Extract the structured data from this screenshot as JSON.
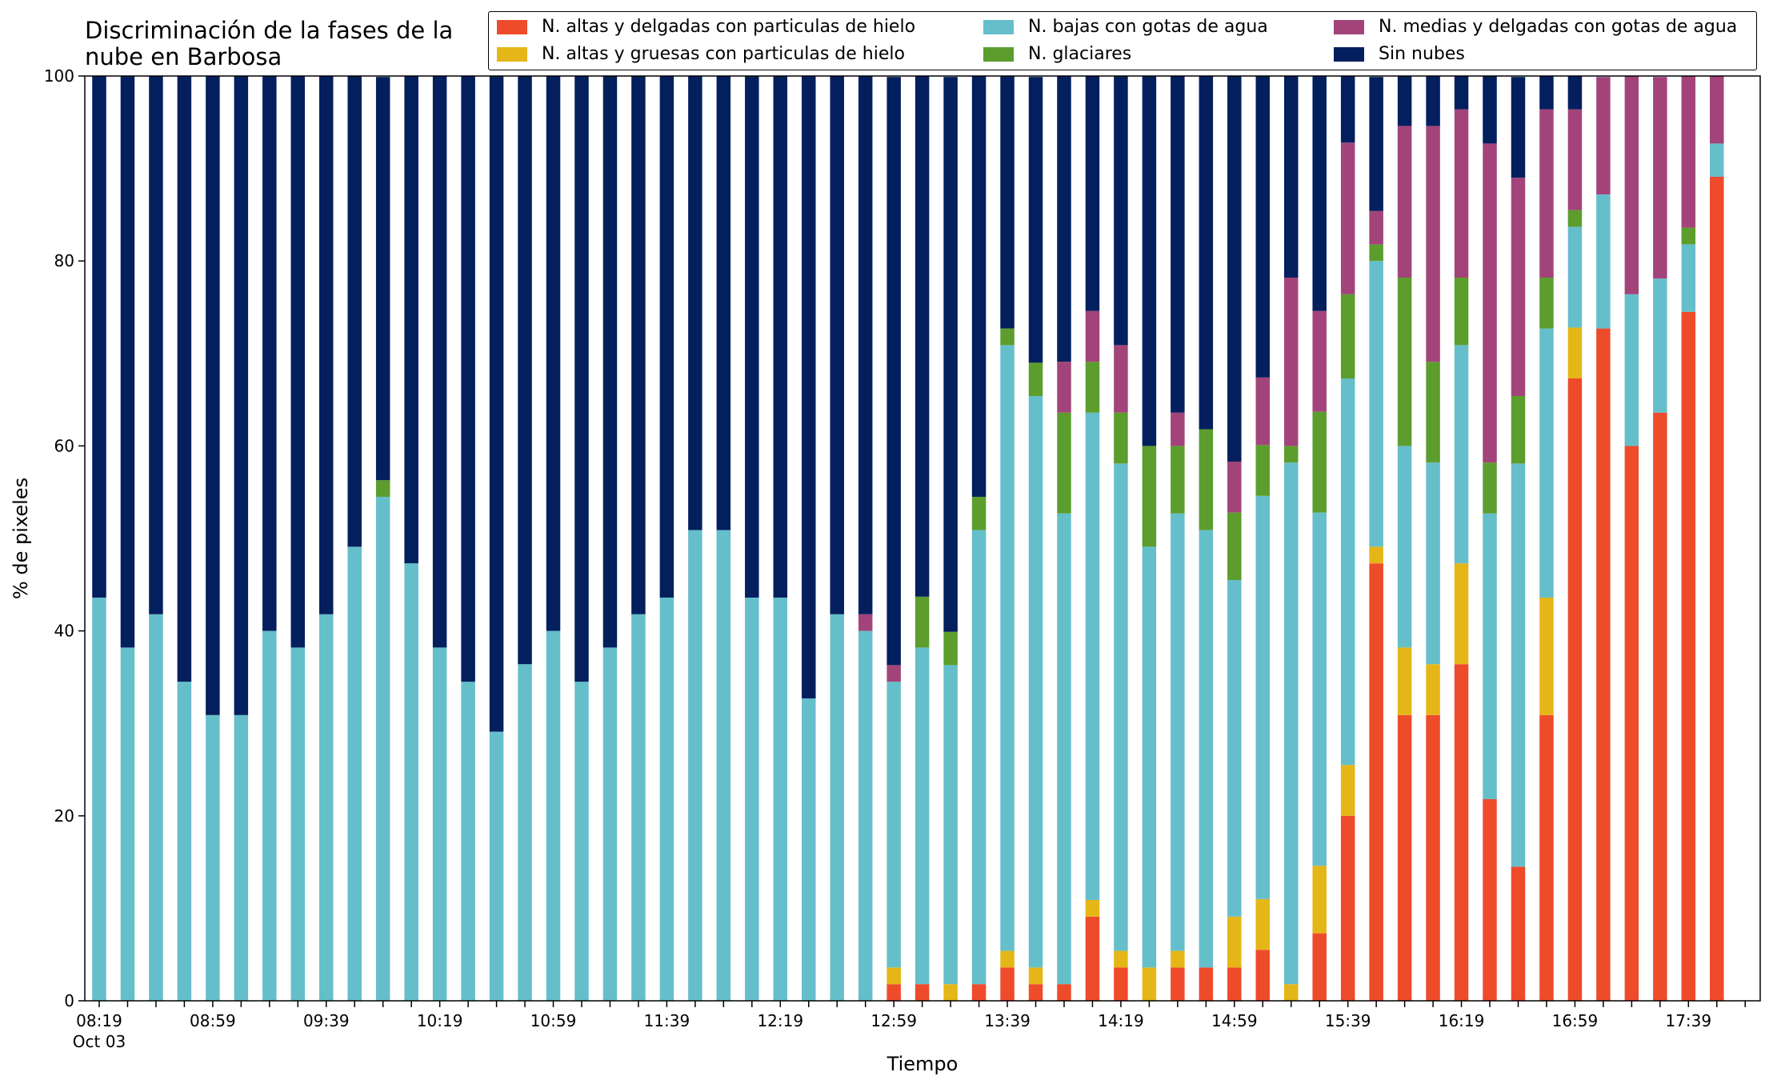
{
  "chart_data": {
    "type": "bar",
    "stacked": true,
    "title": "Discriminación de la fases de la nube en Barbosa",
    "title_lines": [
      "Discriminación de la fases de la",
      "nube en Barbosa"
    ],
    "xlabel": "Tiempo",
    "ylabel": "% de pixeles",
    "ylim": [
      0,
      100
    ],
    "yticks": [
      "0",
      "20",
      "40",
      "60",
      "80",
      "100"
    ],
    "x_tick_labels": [
      {
        "index": 0,
        "label": "08:19"
      },
      {
        "index": 4,
        "label": "08:59"
      },
      {
        "index": 8,
        "label": "09:39"
      },
      {
        "index": 12,
        "label": "10:19"
      },
      {
        "index": 16,
        "label": "10:59"
      },
      {
        "index": 20,
        "label": "11:39"
      },
      {
        "index": 24,
        "label": "12:19"
      },
      {
        "index": 28,
        "label": "12:59"
      },
      {
        "index": 32,
        "label": "13:39"
      },
      {
        "index": 36,
        "label": "14:19"
      },
      {
        "index": 40,
        "label": "14:59"
      },
      {
        "index": 44,
        "label": "15:39"
      },
      {
        "index": 48,
        "label": "16:19"
      },
      {
        "index": 52,
        "label": "16:59"
      },
      {
        "index": 56,
        "label": "17:39"
      }
    ],
    "x_date_label": "Oct 03",
    "legend_position": "top-right",
    "grid": false,
    "series": [
      {
        "name": "N. altas y delgadas con particulas de hielo",
        "color": "#ee4b2b",
        "values": [
          0,
          0,
          0,
          0,
          0,
          0,
          0,
          0,
          0,
          0,
          0,
          0,
          0,
          0,
          0,
          0,
          0,
          0,
          0,
          0,
          0,
          0,
          0,
          0,
          0,
          0,
          0,
          0,
          1.8,
          1.8,
          0,
          1.8,
          3.6,
          1.8,
          1.8,
          9.1,
          3.6,
          0,
          3.6,
          3.6,
          3.6,
          5.5,
          0,
          7.3,
          20,
          47.3,
          30.9,
          30.9,
          36.4,
          21.8,
          14.5,
          30.9,
          67.3,
          72.7,
          60,
          63.6,
          74.5,
          89.1
        ]
      },
      {
        "name": "N. altas y gruesas con particulas de hielo",
        "color": "#e5b617",
        "values": [
          0,
          0,
          0,
          0,
          0,
          0,
          0,
          0,
          0,
          0,
          0,
          0,
          0,
          0,
          0,
          0,
          0,
          0,
          0,
          0,
          0,
          0,
          0,
          0,
          0,
          0,
          0,
          0,
          1.8,
          0,
          1.8,
          0,
          1.8,
          1.8,
          0,
          1.8,
          1.8,
          3.6,
          1.8,
          0,
          5.5,
          5.5,
          1.8,
          7.3,
          5.5,
          1.8,
          7.3,
          5.5,
          10.9,
          0,
          0,
          12.7,
          5.5,
          0,
          0,
          0,
          0,
          0
        ]
      },
      {
        "name": "N. bajas con gotas de agua",
        "color": "#65bfca",
        "values": [
          43.6,
          38.2,
          41.8,
          34.5,
          30.9,
          30.9,
          40,
          38.2,
          41.8,
          49.1,
          54.5,
          47.3,
          38.2,
          34.5,
          29.1,
          36.4,
          40,
          34.5,
          38.2,
          41.8,
          43.6,
          50.9,
          50.9,
          43.6,
          43.6,
          32.7,
          41.8,
          40,
          30.9,
          36.4,
          34.5,
          49.1,
          65.5,
          61.8,
          50.9,
          52.7,
          52.7,
          45.5,
          47.3,
          47.3,
          36.4,
          43.6,
          56.4,
          38.2,
          41.8,
          30.9,
          21.8,
          21.8,
          23.6,
          30.9,
          43.6,
          29.1,
          10.9,
          14.5,
          16.4,
          14.5,
          7.3,
          3.6
        ]
      },
      {
        "name": "N. glaciares",
        "color": "#5c9d2d",
        "values": [
          0,
          0,
          0,
          0,
          0,
          0,
          0,
          0,
          0,
          0,
          1.8,
          0,
          0,
          0,
          0,
          0,
          0,
          0,
          0,
          0,
          0,
          0,
          0,
          0,
          0,
          0,
          0,
          0,
          0,
          5.5,
          3.6,
          3.6,
          1.8,
          3.6,
          10.9,
          5.5,
          5.5,
          10.9,
          7.3,
          10.9,
          7.3,
          5.5,
          1.8,
          10.9,
          9.1,
          1.8,
          18.2,
          10.9,
          7.3,
          5.5,
          7.3,
          5.5,
          1.8,
          0,
          0,
          0,
          1.8,
          0
        ]
      },
      {
        "name": "N. medias y delgadas con gotas de agua",
        "color": "#a2447a",
        "values": [
          0,
          0,
          0,
          0,
          0,
          0,
          0,
          0,
          0,
          0,
          0,
          0,
          0,
          0,
          0,
          0,
          0,
          0,
          0,
          0,
          0,
          0,
          0,
          0,
          0,
          0,
          0,
          1.8,
          1.8,
          0,
          0,
          0,
          0,
          0,
          5.5,
          5.5,
          7.3,
          0,
          3.6,
          0,
          5.5,
          7.3,
          18.2,
          10.9,
          16.4,
          3.6,
          16.4,
          25.5,
          18.2,
          34.5,
          23.6,
          18.2,
          10.9,
          12.7,
          23.6,
          21.8,
          16.4,
          7.3
        ]
      },
      {
        "name": "Sin nubes",
        "color": "#031f5e",
        "values": [
          56.4,
          61.8,
          58.2,
          65.5,
          69.1,
          69.1,
          60,
          61.8,
          58.2,
          50.9,
          43.6,
          52.7,
          61.8,
          65.5,
          70.9,
          63.6,
          60,
          65.5,
          61.8,
          58.2,
          56.4,
          49.1,
          49.1,
          56.4,
          56.4,
          67.3,
          58.2,
          58.2,
          63.6,
          56.4,
          60,
          45.5,
          27.3,
          30.9,
          30.9,
          25.5,
          29.1,
          40,
          36.4,
          38.2,
          41.8,
          32.7,
          21.8,
          25.5,
          7.3,
          14.5,
          5.5,
          5.5,
          3.6,
          7.3,
          10.9,
          3.6,
          3.6,
          0,
          0,
          0,
          0,
          0
        ]
      }
    ]
  }
}
